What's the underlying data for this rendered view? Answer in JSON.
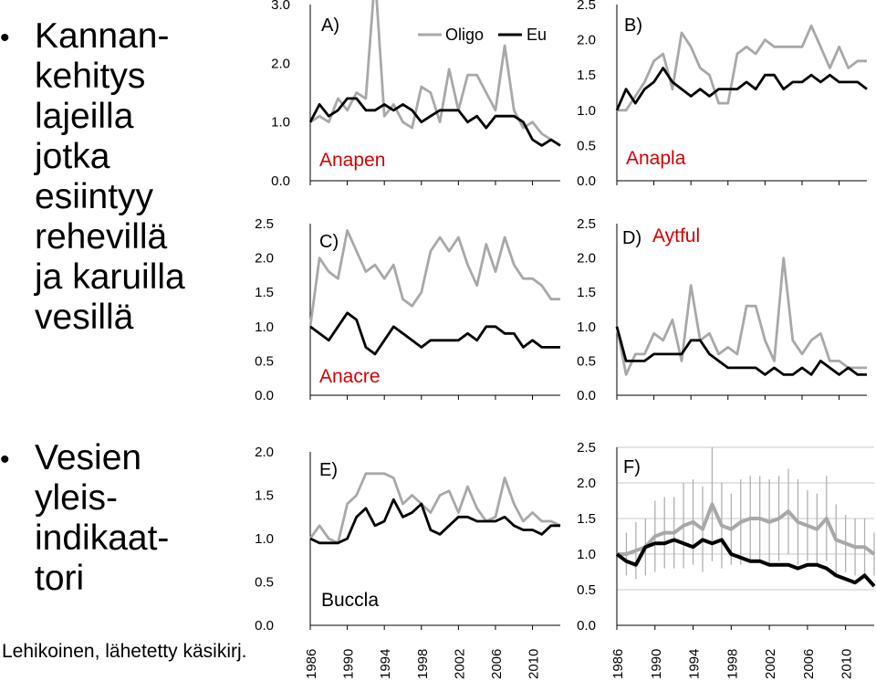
{
  "bullets": [
    {
      "text": "Kannan-\nkehitys\nlajeilla\njotka\nesiintyy\nrehevillä\nja karuilla\nvesillä"
    },
    {
      "text": "Vesien\nyleis-\nindikaat-\ntori"
    }
  ],
  "credit": "Lehikoinen, lähetetty käsikirj.",
  "legend": {
    "oligo": "Oligo",
    "eu": "Eu"
  },
  "colors": {
    "oligo": "#a8a8a8",
    "eu": "#000000",
    "species_label": "#d40000",
    "error_bar": "#b0b0b0"
  },
  "x_ticks": [
    "1986",
    "1990",
    "1994",
    "1998",
    "2002",
    "2006",
    "2010"
  ],
  "chart_data": [
    {
      "panel": "A)",
      "species": "Anapen",
      "type": "line",
      "xlim": [
        1986,
        2013
      ],
      "ylim": [
        0,
        3.0
      ],
      "y_ticks": [
        "3.0",
        "2.0",
        "1.0",
        "0.0"
      ],
      "years": [
        1986,
        1987,
        1988,
        1989,
        1990,
        1991,
        1992,
        1993,
        1994,
        1995,
        1996,
        1997,
        1998,
        1999,
        2000,
        2001,
        2002,
        2003,
        2004,
        2005,
        2006,
        2007,
        2008,
        2009,
        2010,
        2011,
        2012,
        2013
      ],
      "series": [
        {
          "name": "Oligo",
          "values": [
            1.0,
            1.1,
            1.0,
            1.4,
            1.2,
            1.5,
            1.4,
            3.5,
            1.1,
            1.3,
            1.0,
            0.9,
            1.6,
            1.5,
            1.0,
            1.9,
            1.2,
            1.8,
            1.8,
            1.5,
            1.2,
            2.3,
            1.2,
            0.9,
            1.0,
            0.8,
            0.7,
            0.6
          ]
        },
        {
          "name": "Eu",
          "values": [
            1.0,
            1.3,
            1.1,
            1.2,
            1.4,
            1.4,
            1.2,
            1.2,
            1.3,
            1.2,
            1.3,
            1.2,
            1.0,
            1.1,
            1.2,
            1.2,
            1.2,
            1.0,
            1.1,
            0.9,
            1.1,
            1.1,
            1.1,
            1.0,
            0.7,
            0.6,
            0.7,
            0.6
          ]
        }
      ]
    },
    {
      "panel": "B)",
      "species": "Anapla",
      "type": "line",
      "xlim": [
        1986,
        2013
      ],
      "ylim": [
        0,
        2.5
      ],
      "y_ticks": [
        "2.5",
        "2.0",
        "1.5",
        "1.0",
        "0.5",
        "0.0"
      ],
      "years": [
        1986,
        1987,
        1988,
        1989,
        1990,
        1991,
        1992,
        1993,
        1994,
        1995,
        1996,
        1997,
        1998,
        1999,
        2000,
        2001,
        2002,
        2003,
        2004,
        2005,
        2006,
        2007,
        2008,
        2009,
        2010,
        2011,
        2012,
        2013
      ],
      "series": [
        {
          "name": "Oligo",
          "values": [
            1.0,
            1.0,
            1.2,
            1.4,
            1.7,
            1.8,
            1.3,
            2.1,
            1.9,
            1.6,
            1.5,
            1.1,
            1.1,
            1.8,
            1.9,
            1.8,
            2.0,
            1.9,
            1.9,
            1.9,
            1.9,
            2.2,
            1.9,
            1.6,
            1.9,
            1.6,
            1.7,
            1.7
          ]
        },
        {
          "name": "Eu",
          "values": [
            1.0,
            1.3,
            1.1,
            1.3,
            1.4,
            1.6,
            1.4,
            1.3,
            1.2,
            1.3,
            1.2,
            1.3,
            1.3,
            1.3,
            1.4,
            1.3,
            1.5,
            1.5,
            1.3,
            1.4,
            1.4,
            1.5,
            1.4,
            1.5,
            1.4,
            1.4,
            1.4,
            1.3
          ]
        }
      ]
    },
    {
      "panel": "C)",
      "species": "Anacre",
      "type": "line",
      "xlim": [
        1986,
        2013
      ],
      "ylim": [
        0,
        2.5
      ],
      "y_ticks": [
        "2.5",
        "2.0",
        "1.5",
        "1.0",
        "0.5",
        "0.0"
      ],
      "years": [
        1986,
        1987,
        1988,
        1989,
        1990,
        1991,
        1992,
        1993,
        1994,
        1995,
        1996,
        1997,
        1998,
        1999,
        2000,
        2001,
        2002,
        2003,
        2004,
        2005,
        2006,
        2007,
        2008,
        2009,
        2010,
        2011,
        2012,
        2013
      ],
      "series": [
        {
          "name": "Oligo",
          "values": [
            1.0,
            2.0,
            1.8,
            1.7,
            2.4,
            2.1,
            1.8,
            1.9,
            1.7,
            1.9,
            1.4,
            1.3,
            1.5,
            2.1,
            2.3,
            2.1,
            2.3,
            1.9,
            1.6,
            2.2,
            1.8,
            2.3,
            1.9,
            1.7,
            1.7,
            1.6,
            1.4,
            1.4
          ]
        },
        {
          "name": "Eu",
          "values": [
            1.0,
            0.9,
            0.8,
            1.0,
            1.2,
            1.1,
            0.7,
            0.6,
            0.8,
            1.0,
            0.9,
            0.8,
            0.7,
            0.8,
            0.8,
            0.8,
            0.8,
            0.9,
            0.8,
            1.0,
            1.0,
            0.9,
            0.9,
            0.7,
            0.8,
            0.7,
            0.7,
            0.7
          ]
        }
      ]
    },
    {
      "panel": "D)",
      "species": "Aytful",
      "type": "line",
      "xlim": [
        1986,
        2013
      ],
      "ylim": [
        0,
        2.5
      ],
      "y_ticks": [
        "2.5",
        "2.0",
        "1.5",
        "1.0",
        "0.5",
        "0.0"
      ],
      "years": [
        1986,
        1987,
        1988,
        1989,
        1990,
        1991,
        1992,
        1993,
        1994,
        1995,
        1996,
        1997,
        1998,
        1999,
        2000,
        2001,
        2002,
        2003,
        2004,
        2005,
        2006,
        2007,
        2008,
        2009,
        2010,
        2011,
        2012,
        2013
      ],
      "series": [
        {
          "name": "Oligo",
          "values": [
            1.0,
            0.3,
            0.6,
            0.6,
            0.9,
            0.8,
            1.1,
            0.5,
            1.6,
            0.8,
            0.9,
            0.6,
            0.7,
            0.6,
            1.3,
            1.3,
            0.8,
            0.5,
            2.0,
            0.8,
            0.6,
            0.8,
            0.9,
            0.5,
            0.5,
            0.4,
            0.4,
            0.4
          ]
        },
        {
          "name": "Eu",
          "values": [
            1.0,
            0.5,
            0.5,
            0.5,
            0.6,
            0.6,
            0.6,
            0.6,
            0.8,
            0.8,
            0.6,
            0.5,
            0.4,
            0.4,
            0.4,
            0.4,
            0.3,
            0.4,
            0.3,
            0.3,
            0.4,
            0.3,
            0.5,
            0.4,
            0.3,
            0.4,
            0.3,
            0.3
          ]
        }
      ]
    },
    {
      "panel": "E)",
      "species": "Buccla",
      "type": "line",
      "xlim": [
        1986,
        2013
      ],
      "ylim": [
        0,
        2.0
      ],
      "y_ticks": [
        "2.0",
        "1.5",
        "1.0",
        "0.5",
        "0.0"
      ],
      "years": [
        1986,
        1987,
        1988,
        1989,
        1990,
        1991,
        1992,
        1993,
        1994,
        1995,
        1996,
        1997,
        1998,
        1999,
        2000,
        2001,
        2002,
        2003,
        2004,
        2005,
        2006,
        2007,
        2008,
        2009,
        2010,
        2011,
        2012,
        2013
      ],
      "series": [
        {
          "name": "Oligo",
          "values": [
            1.0,
            1.15,
            1.0,
            0.95,
            1.4,
            1.5,
            1.75,
            1.75,
            1.75,
            1.7,
            1.4,
            1.5,
            1.4,
            1.3,
            1.5,
            1.55,
            1.3,
            1.6,
            1.35,
            1.2,
            1.25,
            1.7,
            1.4,
            1.2,
            1.3,
            1.2,
            1.2,
            1.15
          ]
        },
        {
          "name": "Eu",
          "values": [
            1.0,
            0.95,
            0.95,
            0.95,
            1.0,
            1.25,
            1.35,
            1.15,
            1.2,
            1.45,
            1.25,
            1.3,
            1.4,
            1.1,
            1.05,
            1.15,
            1.25,
            1.25,
            1.2,
            1.2,
            1.2,
            1.25,
            1.15,
            1.1,
            1.1,
            1.05,
            1.15,
            1.15
          ]
        }
      ]
    },
    {
      "panel": "F)",
      "species": "",
      "type": "line",
      "xlim": [
        1986,
        2013
      ],
      "ylim": [
        0,
        2.5
      ],
      "grid": true,
      "y_ticks": [
        "2.5",
        "2.0",
        "1.5",
        "1.0",
        "0.5",
        "0.0"
      ],
      "years": [
        1986,
        1987,
        1988,
        1989,
        1990,
        1991,
        1992,
        1993,
        1994,
        1995,
        1996,
        1997,
        1998,
        1999,
        2000,
        2001,
        2002,
        2003,
        2004,
        2005,
        2006,
        2007,
        2008,
        2009,
        2010,
        2011,
        2012,
        2013
      ],
      "series": [
        {
          "name": "Oligo",
          "values": [
            1.0,
            1.0,
            1.05,
            1.1,
            1.25,
            1.3,
            1.3,
            1.4,
            1.45,
            1.35,
            1.7,
            1.4,
            1.35,
            1.45,
            1.5,
            1.5,
            1.45,
            1.5,
            1.6,
            1.45,
            1.4,
            1.35,
            1.5,
            1.2,
            1.15,
            1.1,
            1.1,
            1.0
          ]
        },
        {
          "name": "Eu",
          "values": [
            1.0,
            0.9,
            0.85,
            1.1,
            1.15,
            1.15,
            1.2,
            1.15,
            1.1,
            1.2,
            1.15,
            1.2,
            1.0,
            0.95,
            0.9,
            0.9,
            0.85,
            0.85,
            0.85,
            0.8,
            0.85,
            0.85,
            0.8,
            0.7,
            0.65,
            0.6,
            0.7,
            0.55
          ]
        }
      ],
      "error_bars": [
        0.0,
        0.3,
        0.4,
        0.4,
        0.5,
        0.5,
        0.5,
        0.6,
        0.6,
        0.6,
        0.8,
        0.6,
        0.5,
        0.6,
        0.6,
        0.6,
        0.6,
        0.6,
        0.6,
        0.6,
        0.5,
        0.5,
        0.6,
        0.5,
        0.4,
        0.4,
        0.4,
        0.3
      ]
    }
  ]
}
